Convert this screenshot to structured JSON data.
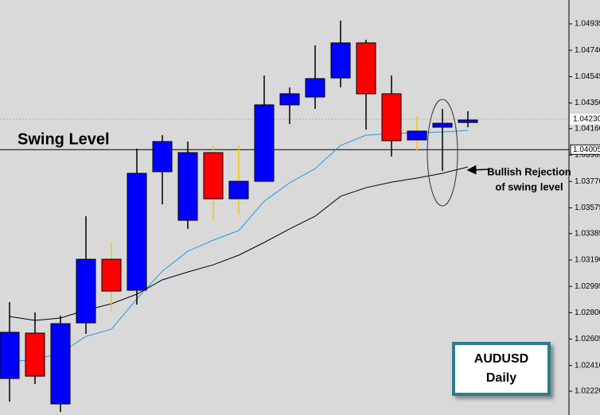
{
  "chart_data": {
    "type": "candlestick",
    "open": [
      1.02314,
      1.02649,
      1.02126,
      1.02725,
      1.03195,
      1.02966,
      1.03842,
      1.03483,
      1.03983,
      1.03642,
      1.03771,
      1.04336,
      1.04394,
      1.04535,
      1.04794,
      1.04418,
      1.04077,
      1.04171,
      1.04206
    ],
    "high": [
      1.02878,
      1.02802,
      1.02778,
      1.03513,
      1.03319,
      1.04012,
      1.04112,
      1.04065,
      1.04036,
      1.04036,
      1.04553,
      1.04465,
      1.04776,
      1.04959,
      1.04817,
      1.04553,
      1.04253,
      1.04306,
      1.04289
    ],
    "low": [
      1.02143,
      1.02273,
      1.02067,
      1.02643,
      1.02808,
      1.0286,
      1.03601,
      1.03419,
      1.03483,
      1.03525,
      1.03771,
      1.04194,
      1.04306,
      1.04465,
      1.04153,
      1.03954,
      1.03995,
      1.03848,
      1.04171
    ],
    "close": [
      1.02655,
      1.02331,
      1.02719,
      1.03195,
      1.0296,
      1.0383,
      1.04065,
      1.03983,
      1.03642,
      1.03771,
      1.04336,
      1.04418,
      1.0453,
      1.04794,
      1.04418,
      1.04071,
      1.04142,
      1.042,
      1.04224
    ],
    "up_color": "#0000ff",
    "down_color": "#ff0000",
    "wick_colors": [
      "#000000",
      "#000000",
      "#000000",
      "#000000",
      "#f5c400",
      "#000000",
      "#000000",
      "#000000",
      "#f5c400",
      "#f5c400",
      "#000000",
      "#000000",
      "#000000",
      "#000000",
      "#000000",
      "#000000",
      "#f5c400",
      "#000000",
      "#000000"
    ],
    "overlays": [
      {
        "color": "#1e9be6",
        "values": [
          1.02437,
          1.02455,
          1.02502,
          1.02625,
          1.02678,
          1.02902,
          1.03107,
          1.03254,
          1.03336,
          1.03407,
          1.03624,
          1.0376,
          1.03865,
          1.04036,
          1.04112,
          1.04124,
          1.0413,
          1.04136,
          1.04147
        ]
      },
      {
        "color": "#000000",
        "values": [
          1.02772,
          1.02743,
          1.02761,
          1.02819,
          1.02866,
          1.02937,
          1.03043,
          1.03101,
          1.03154,
          1.03225,
          1.03319,
          1.03419,
          1.03513,
          1.0366,
          1.03724,
          1.03765,
          1.03795,
          1.0383,
          1.03877
        ]
      }
    ],
    "ylim": [
      1.02044,
      1.05111
    ],
    "yticks": [
      1.04935,
      {
        "value": 1.0474,
        "label": "1.04740"
      },
      1.04545,
      {
        "value": 1.0435,
        "label": "1.04350"
      },
      {
        "value": 1.0416,
        "label": "1.04160"
      },
      1.03965,
      {
        "value": 1.0377,
        "label": "1.03770"
      },
      1.03575,
      1.03385,
      {
        "value": 1.0319,
        "label": "1.03190"
      },
      1.02995,
      {
        "value": 1.028,
        "label": "1.02800"
      },
      1.02605,
      {
        "value": 1.0241,
        "label": "1.02410"
      },
      {
        "value": 1.0222,
        "label": "1.02220"
      }
    ],
    "current_price": {
      "value": 1.0423,
      "label": "1.04230"
    },
    "swing_level": {
      "value": 1.04005,
      "label": "1.04005"
    },
    "swing_label": "Swing Level",
    "annotation": [
      "Bullish Rejection",
      "of swing level"
    ],
    "box": [
      "AUDUSD",
      "Daily"
    ]
  }
}
